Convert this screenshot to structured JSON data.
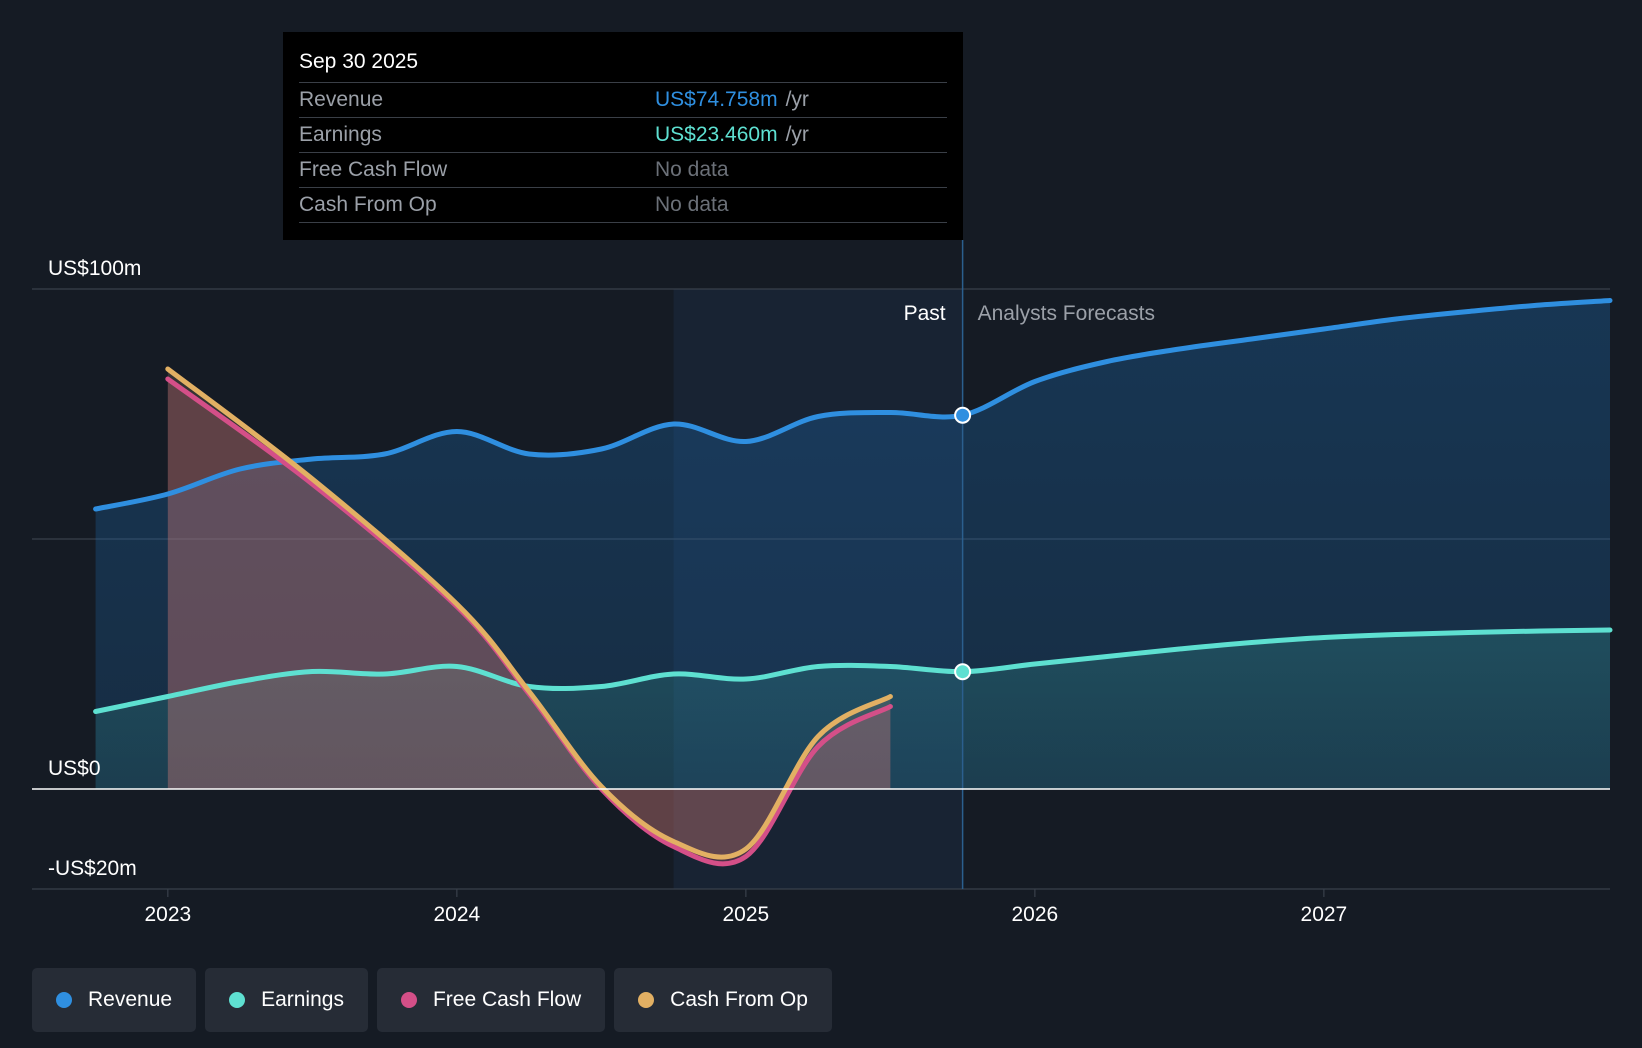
{
  "tooltip": {
    "date": "Sep 30 2025",
    "rows": [
      {
        "label": "Revenue",
        "value": "US$74.758m",
        "unit": "/yr",
        "color": "#2f8fe0"
      },
      {
        "label": "Earnings",
        "value": "US$23.460m",
        "unit": "/yr",
        "color": "#5ee0d1"
      },
      {
        "label": "Free Cash Flow",
        "value": "No data"
      },
      {
        "label": "Cash From Op",
        "value": "No data"
      }
    ]
  },
  "chart_data": {
    "type": "area",
    "title": "",
    "y_axis_labels": [
      "US$100m",
      "US$0",
      "-US$20m"
    ],
    "ylim": [
      -20,
      100
    ],
    "x_ticks": [
      "2023",
      "2024",
      "2025",
      "2026",
      "2027"
    ],
    "xlim": [
      2022.53,
      2027.99
    ],
    "past_label": "Past",
    "forecast_label": "Analysts Forecasts",
    "divider_x": 2025.75,
    "highlight_start_x": 2024.75,
    "series": [
      {
        "name": "Revenue",
        "color": "#2f8fe0",
        "markerAt": 2025.75,
        "x": [
          2022.75,
          2023.0,
          2023.25,
          2023.5,
          2023.75,
          2024.0,
          2024.25,
          2024.5,
          2024.75,
          2025.0,
          2025.25,
          2025.5,
          2025.75,
          2026.0,
          2026.25,
          2026.5,
          2026.75,
          2027.0,
          2027.25,
          2027.5,
          2027.75,
          2027.99
        ],
        "values": [
          56,
          59,
          64,
          66,
          67,
          71.5,
          67,
          68,
          73,
          69.5,
          74.5,
          75.3,
          74.758,
          81.5,
          85.5,
          88,
          90,
          92,
          94,
          95.5,
          96.8,
          97.7
        ]
      },
      {
        "name": "Earnings",
        "color": "#5ee0d1",
        "markerAt": 2025.75,
        "x": [
          2022.75,
          2023.0,
          2023.25,
          2023.5,
          2023.75,
          2024.0,
          2024.25,
          2024.5,
          2024.75,
          2025.0,
          2025.25,
          2025.5,
          2025.75,
          2026.0,
          2026.25,
          2026.5,
          2026.75,
          2027.0,
          2027.25,
          2027.5,
          2027.75,
          2027.99
        ],
        "values": [
          15.5,
          18.5,
          21.5,
          23.5,
          23,
          24.5,
          20.5,
          20.5,
          23,
          22,
          24.5,
          24.5,
          23.46,
          25,
          26.5,
          28,
          29.3,
          30.3,
          30.9,
          31.3,
          31.6,
          31.8
        ]
      },
      {
        "name": "Free Cash Flow",
        "color": "#d44f88",
        "x": [
          2023.0,
          2023.5,
          2024.0,
          2024.25,
          2024.5,
          2024.75,
          2025.0,
          2025.25,
          2025.5
        ],
        "values": [
          82,
          61,
          36.5,
          19,
          0,
          -11.5,
          -13.5,
          8.5,
          16.5
        ]
      },
      {
        "name": "Cash From Op",
        "color": "#e2b063",
        "x": [
          2023.0,
          2023.5,
          2024.0,
          2024.25,
          2024.5,
          2024.75,
          2025.0,
          2025.25,
          2025.5
        ],
        "values": [
          84,
          62,
          37,
          19.5,
          0.5,
          -10.5,
          -12,
          10.5,
          18.5
        ]
      }
    ]
  },
  "legend": [
    {
      "label": "Revenue",
      "color": "#2f8fe0"
    },
    {
      "label": "Earnings",
      "color": "#5ee0d1"
    },
    {
      "label": "Free Cash Flow",
      "color": "#d44f88"
    },
    {
      "label": "Cash From Op",
      "color": "#e2b063"
    }
  ]
}
